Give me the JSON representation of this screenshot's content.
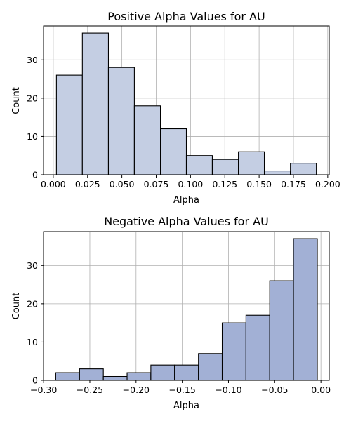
{
  "chart_data": [
    {
      "type": "bar",
      "title": "Positive Alpha Values for AU",
      "xlabel": "Alpha",
      "ylabel": "Count",
      "bin_edges": [
        0.0023,
        0.0212,
        0.0402,
        0.0591,
        0.0781,
        0.097,
        0.1159,
        0.1349,
        0.1538,
        0.1728,
        0.1917
      ],
      "values": [
        26,
        37,
        28,
        18,
        12,
        5,
        4,
        6,
        1,
        3
      ],
      "xlim": [
        -0.0071,
        0.2011
      ],
      "ylim": [
        0,
        38.85
      ],
      "xticks": [
        0.0,
        0.025,
        0.05,
        0.075,
        0.1,
        0.125,
        0.15,
        0.175,
        0.2
      ],
      "xtick_labels": [
        "0.000",
        "0.025",
        "0.050",
        "0.075",
        "0.100",
        "0.125",
        "0.150",
        "0.175",
        "0.200"
      ],
      "yticks": [
        0,
        10,
        20,
        30
      ],
      "ytick_labels": [
        "0",
        "10",
        "20",
        "30"
      ],
      "grid": true,
      "bar_color": "#c4cee3"
    },
    {
      "type": "bar",
      "title": "Negative Alpha Values for AU",
      "xlabel": "Alpha",
      "ylabel": "Count",
      "bin_edges": [
        -0.2869,
        -0.2611,
        -0.2354,
        -0.2097,
        -0.184,
        -0.1583,
        -0.1325,
        -0.1068,
        -0.0811,
        -0.0554,
        -0.0297,
        -0.0039
      ],
      "values": [
        2,
        3,
        1,
        2,
        4,
        4,
        7,
        15,
        17,
        26,
        37
      ],
      "xlim": [
        -0.3001,
        0.009
      ],
      "ylim": [
        0,
        38.85
      ],
      "xticks": [
        -0.3,
        -0.25,
        -0.2,
        -0.15,
        -0.1,
        -0.05,
        0.0
      ],
      "xtick_labels": [
        "−0.30",
        "−0.25",
        "−0.20",
        "−0.15",
        "−0.10",
        "−0.05",
        "0.00"
      ],
      "yticks": [
        0,
        10,
        20,
        30
      ],
      "ytick_labels": [
        "0",
        "10",
        "20",
        "30"
      ],
      "grid": true,
      "bar_color": "#a2b0d5"
    }
  ]
}
